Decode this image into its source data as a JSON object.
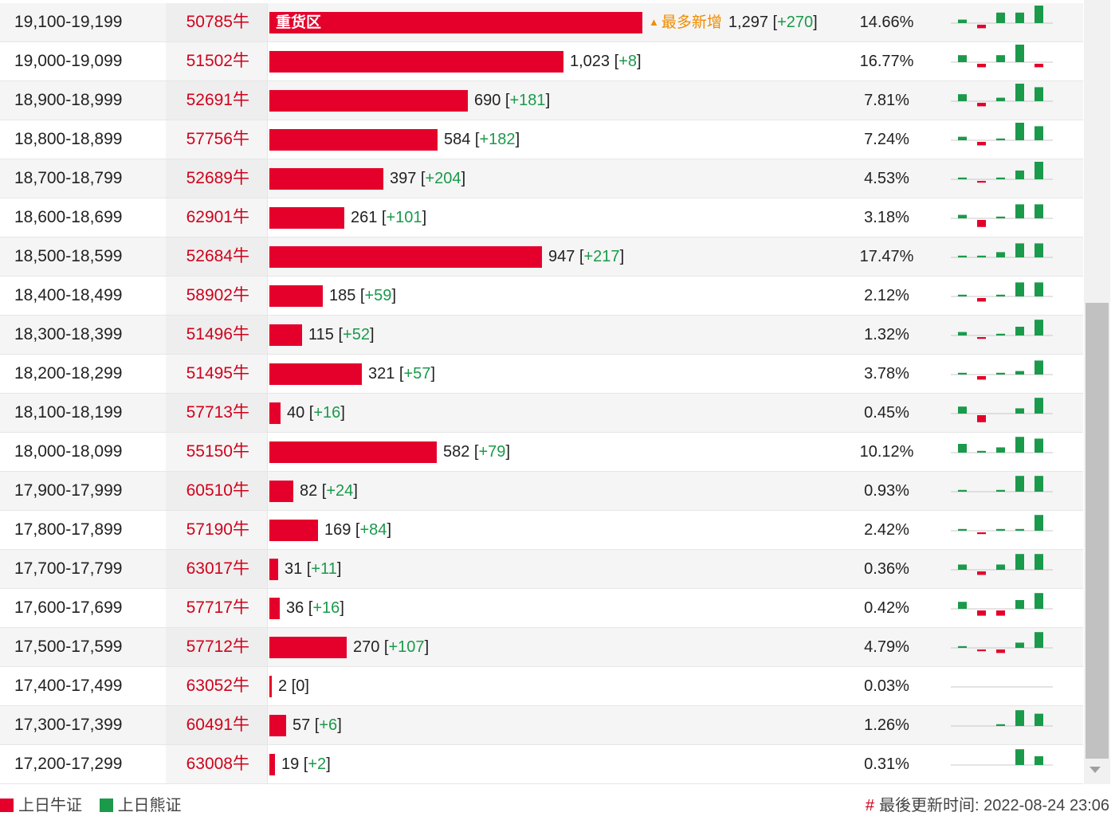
{
  "colors": {
    "bull": "#e4002b",
    "bear": "#1a9a4a",
    "accent_tag": "#f08c00",
    "code_text": "#d0021b"
  },
  "bar_max_value": 1297,
  "rows": [
    {
      "range": "19,100-19,199",
      "code": "50785牛",
      "value": 1297,
      "value_text": "1,297",
      "change": "+270",
      "pct": "14.66%",
      "bar_label": "重货区",
      "tag": "最多新增",
      "spark": [
        1,
        -1,
        3,
        3,
        5
      ]
    },
    {
      "range": "19,000-19,099",
      "code": "51502牛",
      "value": 1023,
      "value_text": "1,023",
      "change": "+8",
      "pct": "16.77%",
      "spark": [
        2,
        -1,
        2,
        5,
        -1
      ]
    },
    {
      "range": "18,900-18,999",
      "code": "52691牛",
      "value": 690,
      "value_text": "690",
      "change": "+181",
      "pct": "7.81%",
      "spark": [
        2,
        -1,
        1,
        5,
        4
      ]
    },
    {
      "range": "18,800-18,899",
      "code": "57756牛",
      "value": 584,
      "value_text": "584",
      "change": "+182",
      "pct": "7.24%",
      "spark": [
        1,
        -1,
        0.5,
        5,
        4
      ]
    },
    {
      "range": "18,700-18,799",
      "code": "52689牛",
      "value": 397,
      "value_text": "397",
      "change": "+204",
      "pct": "4.53%",
      "spark": [
        0.5,
        -0.5,
        0.5,
        2.5,
        5
      ]
    },
    {
      "range": "18,600-18,699",
      "code": "62901牛",
      "value": 261,
      "value_text": "261",
      "change": "+101",
      "pct": "3.18%",
      "spark": [
        1,
        -2,
        0.5,
        4,
        4
      ]
    },
    {
      "range": "18,500-18,599",
      "code": "52684牛",
      "value": 947,
      "value_text": "947",
      "change": "+217",
      "pct": "17.47%",
      "spark": [
        0.5,
        0.5,
        1.5,
        4,
        4
      ]
    },
    {
      "range": "18,400-18,499",
      "code": "58902牛",
      "value": 185,
      "value_text": "185",
      "change": "+59",
      "pct": "2.12%",
      "spark": [
        0.5,
        -1,
        0.5,
        4,
        4
      ]
    },
    {
      "range": "18,300-18,399",
      "code": "51496牛",
      "value": 115,
      "value_text": "115",
      "change": "+52",
      "pct": "1.32%",
      "spark": [
        1,
        -0.5,
        0.5,
        2.5,
        4.5
      ]
    },
    {
      "range": "18,200-18,299",
      "code": "51495牛",
      "value": 321,
      "value_text": "321",
      "change": "+57",
      "pct": "3.78%",
      "spark": [
        0.5,
        -1,
        0.5,
        1,
        4
      ]
    },
    {
      "range": "18,100-18,199",
      "code": "57713牛",
      "value": 40,
      "value_text": "40",
      "change": "+16",
      "pct": "0.45%",
      "spark": [
        2,
        -2,
        0,
        1.5,
        4.5
      ]
    },
    {
      "range": "18,000-18,099",
      "code": "55150牛",
      "value": 582,
      "value_text": "582",
      "change": "+79",
      "pct": "10.12%",
      "spark": [
        2.5,
        0.5,
        1.5,
        4.5,
        4
      ]
    },
    {
      "range": "17,900-17,999",
      "code": "60510牛",
      "value": 82,
      "value_text": "82",
      "change": "+24",
      "pct": "0.93%",
      "spark": [
        0.5,
        0,
        0.5,
        4.5,
        4.5
      ]
    },
    {
      "range": "17,800-17,899",
      "code": "57190牛",
      "value": 169,
      "value_text": "169",
      "change": "+84",
      "pct": "2.42%",
      "spark": [
        0.5,
        -0.5,
        0.5,
        0.5,
        4.5
      ]
    },
    {
      "range": "17,700-17,799",
      "code": "63017牛",
      "value": 31,
      "value_text": "31",
      "change": "+11",
      "pct": "0.36%",
      "spark": [
        1.5,
        -1,
        1.5,
        4.5,
        4.5
      ]
    },
    {
      "range": "17,600-17,699",
      "code": "57717牛",
      "value": 36,
      "value_text": "36",
      "change": "+16",
      "pct": "0.42%",
      "spark": [
        2,
        -1.5,
        -1.5,
        2.5,
        4.5
      ]
    },
    {
      "range": "17,500-17,599",
      "code": "57712牛",
      "value": 270,
      "value_text": "270",
      "change": "+107",
      "pct": "4.79%",
      "spark": [
        0.5,
        -0.5,
        -1,
        1.5,
        4.5
      ]
    },
    {
      "range": "17,400-17,499",
      "code": "63052牛",
      "value": 2,
      "value_text": "2",
      "change": "0",
      "pct": "0.03%",
      "spark": [
        0,
        0,
        0,
        0,
        0
      ]
    },
    {
      "range": "17,300-17,399",
      "code": "60491牛",
      "value": 57,
      "value_text": "57",
      "change": "+6",
      "pct": "1.26%",
      "spark": [
        0,
        0,
        0.5,
        4.5,
        3.5
      ]
    },
    {
      "range": "17,200-17,299",
      "code": "63008牛",
      "value": 19,
      "value_text": "19",
      "change": "+2",
      "pct": "0.31%",
      "spark": [
        0,
        0,
        0,
        4.5,
        2.5
      ]
    }
  ],
  "legend": {
    "bull_label": "上日牛证",
    "bear_label": "上日熊证"
  },
  "footer": {
    "hash": "#",
    "updated_label": "最後更新时间: 2022-08-24 23:06"
  }
}
